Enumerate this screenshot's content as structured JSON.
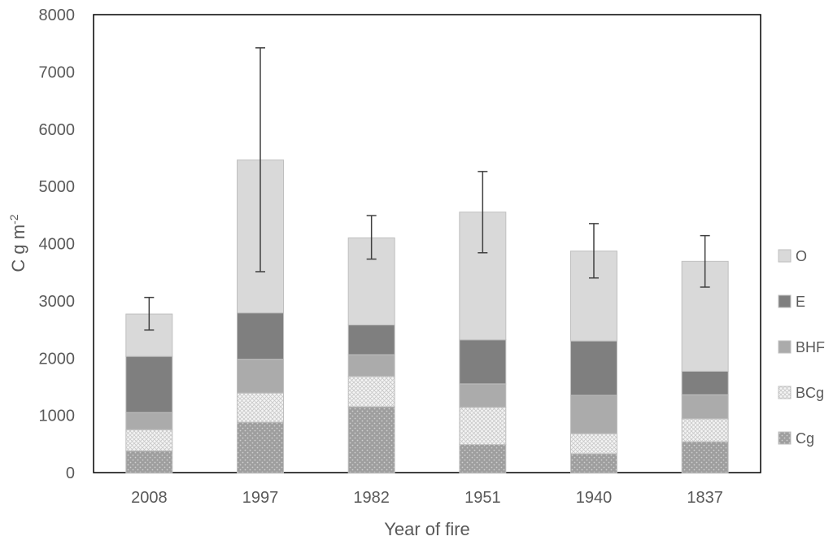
{
  "chart_data": {
    "type": "bar",
    "stacked": true,
    "categories": [
      "2008",
      "1997",
      "1982",
      "1951",
      "1940",
      "1837"
    ],
    "series": [
      {
        "name": "Cg",
        "values": [
          380,
          880,
          1150,
          490,
          330,
          540
        ],
        "color": "#9e9e9e",
        "pattern": "dots"
      },
      {
        "name": "BCg",
        "values": [
          370,
          510,
          530,
          650,
          350,
          400
        ],
        "color": "#f2f2f2",
        "pattern": "crosshatch"
      },
      {
        "name": "BHF",
        "values": [
          300,
          590,
          380,
          410,
          670,
          420
        ],
        "color": "#ababab",
        "pattern": "solid"
      },
      {
        "name": "E",
        "values": [
          980,
          810,
          520,
          770,
          950,
          410
        ],
        "color": "#7f7f7f",
        "pattern": "solid"
      },
      {
        "name": "O",
        "values": [
          740,
          2670,
          1520,
          2230,
          1570,
          1920
        ],
        "color": "#d9d9d9",
        "pattern": "solid"
      }
    ],
    "totals": [
      2770,
      5460,
      4100,
      4550,
      3870,
      3690
    ],
    "error_bars": [
      {
        "low": 2490,
        "high": 3060
      },
      {
        "low": 3510,
        "high": 7420
      },
      {
        "low": 3730,
        "high": 4490
      },
      {
        "low": 3840,
        "high": 5260
      },
      {
        "low": 3400,
        "high": 4350
      },
      {
        "low": 3240,
        "high": 4140
      }
    ],
    "xlabel": "Year of fire",
    "ylabel_main": "C g m",
    "ylabel_sup": "-2",
    "ylim": [
      0,
      8000
    ],
    "yticks": [
      0,
      1000,
      2000,
      3000,
      4000,
      5000,
      6000,
      7000,
      8000
    ],
    "legend_position": "right",
    "legend_order": [
      "O",
      "E",
      "BHF",
      "BCg",
      "Cg"
    ],
    "grid": false
  }
}
